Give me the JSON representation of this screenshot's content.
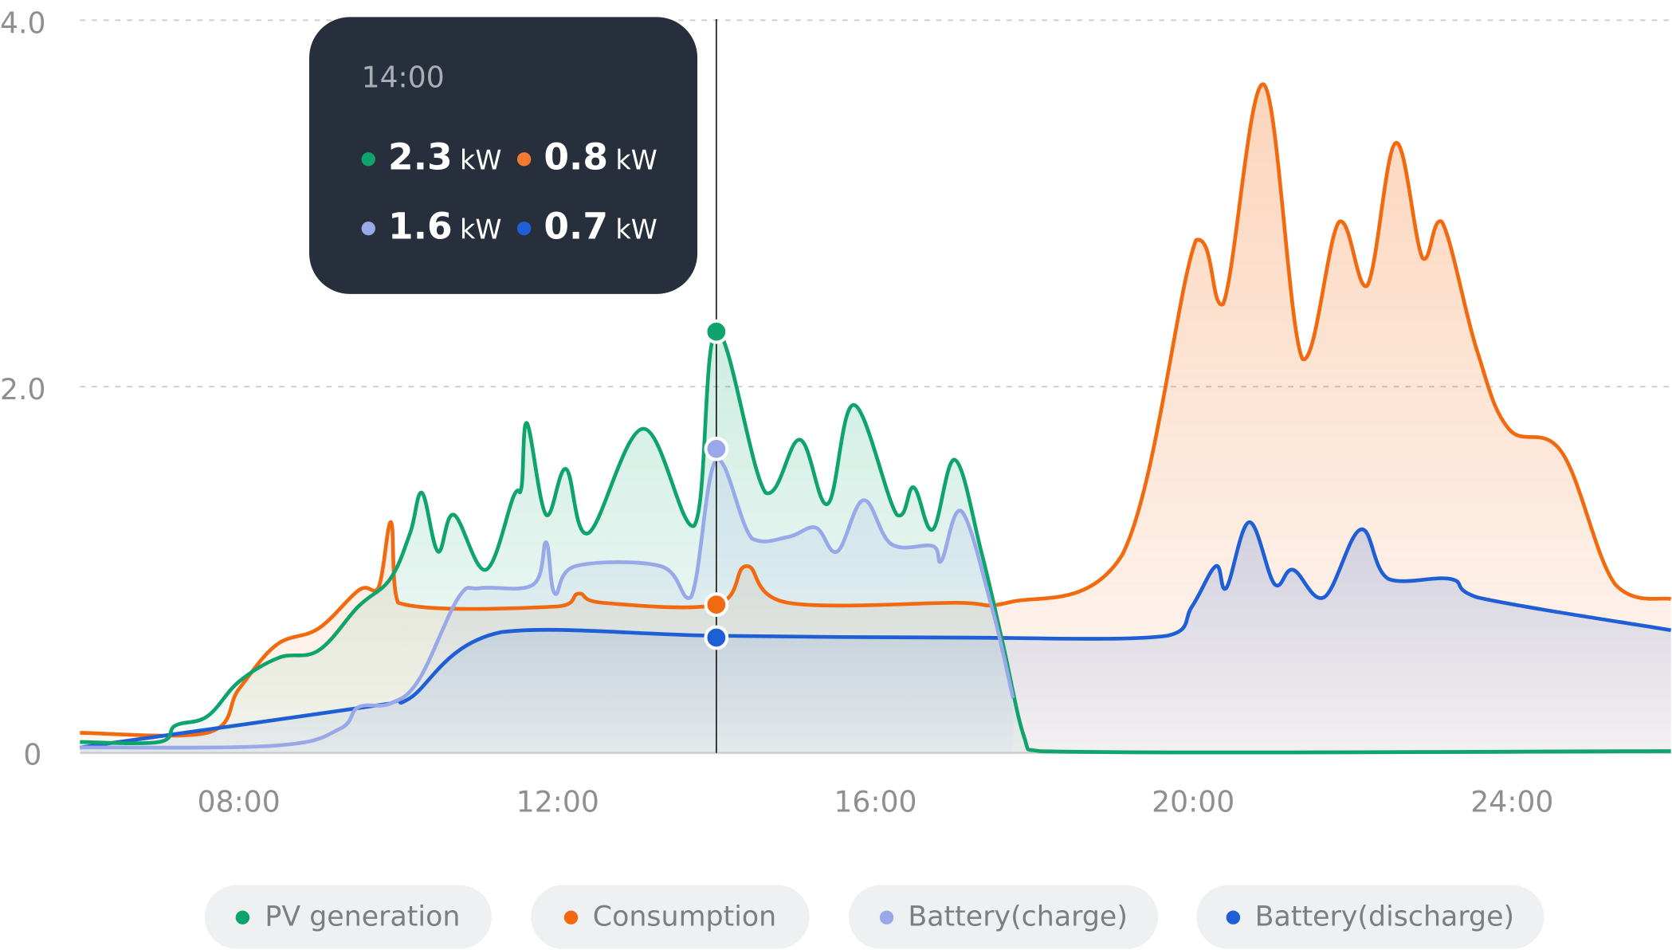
{
  "chart_data": {
    "type": "area",
    "x_unit": "hour",
    "xlim": [
      6,
      26
    ],
    "ylim": [
      0,
      4.0
    ],
    "y_ticks": [
      "0",
      "2.0",
      "4.0"
    ],
    "y_tick_values": [
      0,
      2,
      4
    ],
    "x_ticks": [
      "08:00",
      "12:00",
      "16:00",
      "20:00",
      "24:00"
    ],
    "x_tick_values": [
      8,
      12,
      16,
      20,
      24
    ],
    "grid": "horizontal dashed",
    "legend_position": "bottom",
    "series": [
      {
        "name": "PV generation",
        "color": "#0ea46c",
        "x": [
          6,
          7,
          7.2,
          7.6,
          8.0,
          8.5,
          9.0,
          9.5,
          9.9,
          10.15,
          10.3,
          10.5,
          10.7,
          11.1,
          11.45,
          11.55,
          11.62,
          11.86,
          12.11,
          12.39,
          13.08,
          13.72,
          14.0,
          14.62,
          15.05,
          15.4,
          15.73,
          16.27,
          16.48,
          16.72,
          17.0,
          17.33,
          17.6,
          17.86,
          18.06,
          26
        ],
        "y": [
          0.06,
          0.06,
          0.15,
          0.2,
          0.39,
          0.52,
          0.56,
          0.8,
          0.95,
          1.2,
          1.42,
          1.1,
          1.3,
          1.0,
          1.4,
          1.45,
          1.8,
          1.3,
          1.55,
          1.2,
          1.77,
          1.24,
          2.3,
          1.42,
          1.71,
          1.36,
          1.9,
          1.3,
          1.45,
          1.22,
          1.6,
          1.1,
          0.6,
          0.1,
          0.01,
          0.01
        ]
      },
      {
        "name": "Consumption",
        "color": "#f26a10",
        "x": [
          6,
          7.6,
          8.0,
          8.47,
          9.0,
          9.51,
          9.75,
          9.91,
          10.0,
          12.0,
          12.27,
          12.57,
          14.0,
          14.38,
          14.9,
          17.0,
          17.66,
          19.1,
          20.03,
          20.37,
          20.88,
          21.37,
          21.83,
          22.18,
          22.54,
          22.88,
          23.12,
          23.56,
          23.96,
          24.63,
          25.3,
          26
        ],
        "y": [
          0.11,
          0.11,
          0.35,
          0.59,
          0.68,
          0.89,
          0.9,
          1.26,
          0.82,
          0.8,
          0.87,
          0.82,
          0.81,
          1.02,
          0.82,
          0.82,
          0.82,
          1.08,
          2.8,
          2.45,
          3.65,
          2.15,
          2.9,
          2.55,
          3.33,
          2.7,
          2.9,
          2.2,
          1.77,
          1.64,
          0.92,
          0.84
        ]
      },
      {
        "name": "Battery(charge)",
        "color": "#98a8e8",
        "x": [
          6,
          8.45,
          9.26,
          9.5,
          9.9,
          10.26,
          10.76,
          11.03,
          11.7,
          11.86,
          11.97,
          12.23,
          13.3,
          13.68,
          14.0,
          14.45,
          14.91,
          15.25,
          15.52,
          15.85,
          16.2,
          16.72,
          16.83,
          17.08,
          17.46,
          17.73
        ],
        "y": [
          0.03,
          0.04,
          0.13,
          0.25,
          0.27,
          0.4,
          0.85,
          0.9,
          0.92,
          1.15,
          0.87,
          1.02,
          1.02,
          0.85,
          1.6,
          1.17,
          1.18,
          1.23,
          1.1,
          1.38,
          1.14,
          1.13,
          1.05,
          1.32,
          0.8,
          0.3
        ]
      },
      {
        "name": "Battery(discharge)",
        "color": "#1f5fd6",
        "x": [
          6,
          9.9,
          10.15,
          11.3,
          14.0,
          17.0,
          19.67,
          19.98,
          20.28,
          20.41,
          20.7,
          21.02,
          21.25,
          21.64,
          22.1,
          22.45,
          23.23,
          23.56,
          26
        ],
        "y": [
          0.03,
          0.27,
          0.3,
          0.66,
          0.64,
          0.63,
          0.64,
          0.8,
          1.02,
          0.9,
          1.26,
          0.92,
          1.0,
          0.85,
          1.22,
          0.95,
          0.95,
          0.85,
          0.67
        ]
      }
    ],
    "cursor_x": 14.0
  },
  "tooltip": {
    "time": "14:00",
    "items": [
      {
        "value": "2.3",
        "unit": "kW",
        "color": "#0ea46c"
      },
      {
        "value": "0.8",
        "unit": "kW",
        "color": "#f26a10"
      },
      {
        "value": "1.6",
        "unit": "kW",
        "color": "#98a8e8"
      },
      {
        "value": "0.7",
        "unit": "kW",
        "color": "#1f5fd6"
      }
    ]
  },
  "legend": [
    {
      "label": "PV generation",
      "color": "#0ea46c"
    },
    {
      "label": "Consumption",
      "color": "#f26a10"
    },
    {
      "label": "Battery(charge)",
      "color": "#98a8e8"
    },
    {
      "label": "Battery(discharge)",
      "color": "#1f5fd6"
    }
  ]
}
